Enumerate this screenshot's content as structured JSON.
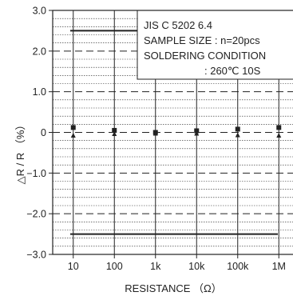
{
  "chart_data": {
    "type": "scatter",
    "xlabel": "RESISTANCE （Ω）",
    "ylabel": "△R / R （%）",
    "x_scale": "log",
    "categories": [
      "10",
      "100",
      "1k",
      "10k",
      "100k",
      "1M"
    ],
    "x_values": [
      10,
      100,
      1000,
      10000,
      100000,
      1000000
    ],
    "y_ticks": [
      "3.0",
      "2.0",
      "1.0",
      "0",
      "−1.0",
      "−2.0",
      "−3.0"
    ],
    "ylim": [
      -3.0,
      3.0
    ],
    "grid": true,
    "limits": {
      "upper": 2.5,
      "lower": -2.5
    },
    "series": [
      {
        "marker": "square",
        "values": [
          0.12,
          0.05,
          0.0,
          0.04,
          0.08,
          0.12
        ]
      },
      {
        "marker": "triangle",
        "values": [
          -0.07,
          -0.03,
          -0.02,
          -0.02,
          -0.06,
          -0.07
        ]
      }
    ],
    "annotation": [
      "JIS C 5202 6.4",
      "SAMPLE SIZE : n=20pcs",
      "SOLDERING CONDITION",
      ": 260℃ 10S"
    ],
    "colors": {
      "ink": "#222222",
      "background": "#ffffff"
    }
  }
}
